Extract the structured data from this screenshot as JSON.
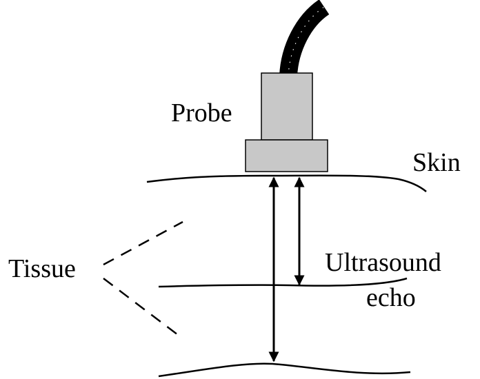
{
  "labels": {
    "probe": "Probe",
    "skin": "Skin",
    "tissue": "Tissue",
    "ultrasound_line1": "Ultrasound",
    "ultrasound_line2": "echo"
  },
  "colors": {
    "probe_fill": "#c8c8c8",
    "stroke": "#000000",
    "cable": "#000000",
    "background": "#ffffff"
  }
}
